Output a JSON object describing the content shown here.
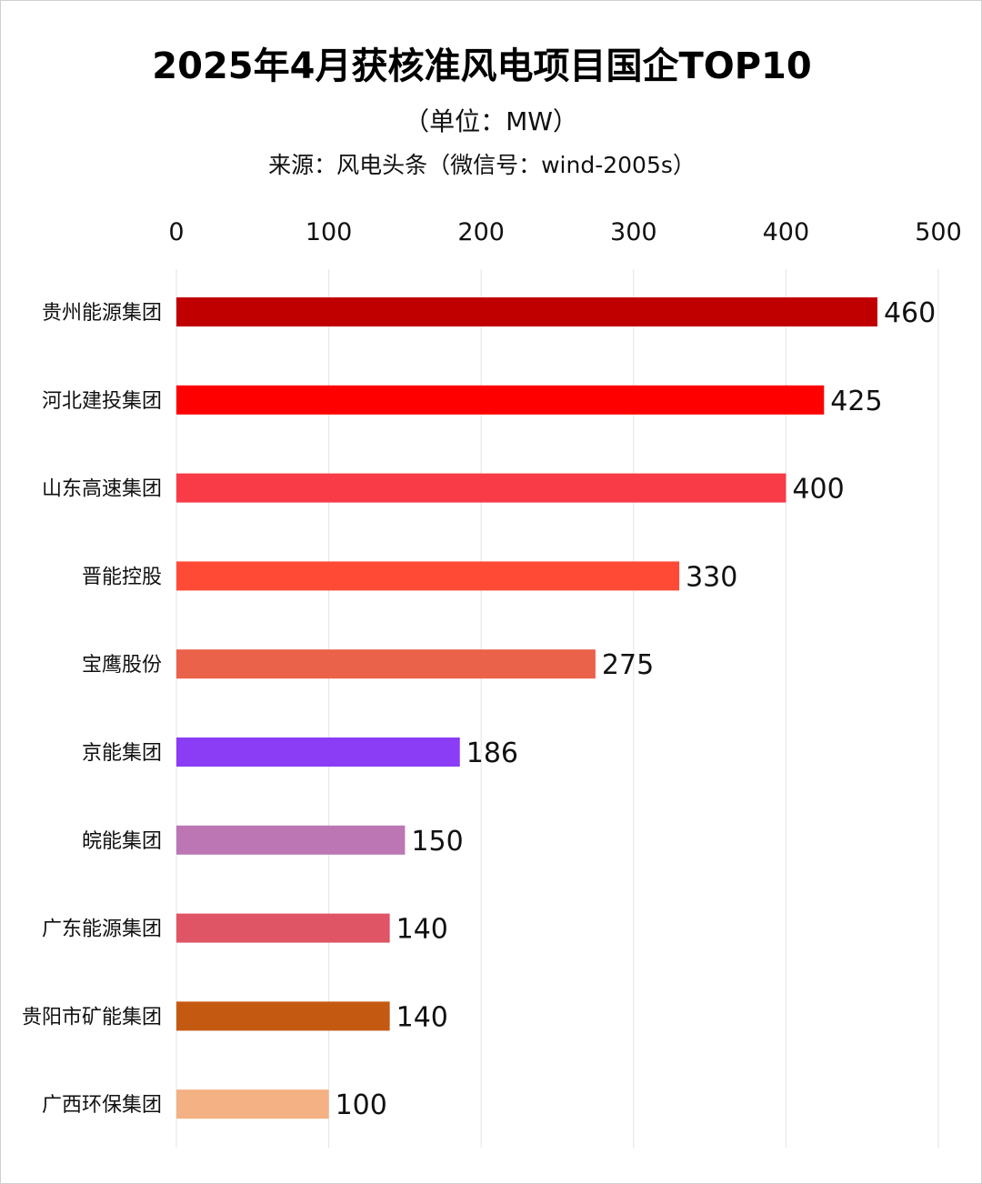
{
  "chart_data": {
    "type": "bar",
    "orientation": "horizontal",
    "title": "2025年4月获核准风电项目国企TOP10",
    "subtitle": "（单位：MW）",
    "source": "来源：风电头条（微信号：wind-2005s）",
    "categories": [
      "贵州能源集团",
      "河北建投集团",
      "山东高速集团",
      "晋能控股",
      "宝鹰股份",
      "京能集团",
      "皖能集团",
      "广东能源集团",
      "贵阳市矿能集团",
      "广西环保集团"
    ],
    "values": [
      460,
      425,
      400,
      330,
      275,
      186,
      150,
      140,
      140,
      100
    ],
    "colors": [
      "#C00000",
      "#FF0000",
      "#F93A47",
      "#FF4B35",
      "#EA6249",
      "#8B3CF5",
      "#BC76B3",
      "#E05565",
      "#C45A12",
      "#F4B183"
    ],
    "xlim": [
      0,
      500
    ],
    "xticks": [
      0,
      100,
      200,
      300,
      400,
      500
    ],
    "axis_position": "top",
    "grid": true,
    "legend": "none"
  }
}
